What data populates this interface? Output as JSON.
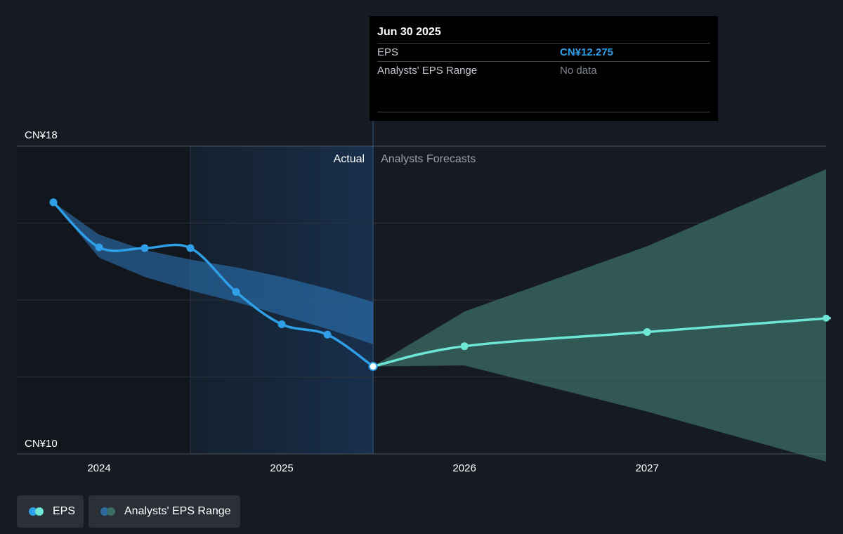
{
  "tooltip": {
    "date": "Jun 30 2025",
    "rows": [
      {
        "label": "EPS",
        "value": "CN¥12.275"
      },
      {
        "label": "Analysts' EPS Range",
        "value": "No data"
      }
    ]
  },
  "legend": {
    "eps_label": "EPS",
    "range_label": "Analysts' EPS Range"
  },
  "colors": {
    "background": "#161b23",
    "actual_line": "#2f9fe8",
    "forecast_line": "#6ee6d6",
    "actual_range": "#2d7cc0",
    "forecast_range": "#3b6e66"
  },
  "chart_data": {
    "type": "line",
    "ylim": [
      10,
      18
    ],
    "y_ticks": [
      10,
      12,
      14,
      16,
      18
    ],
    "y_tick_labels": [
      "CN¥10",
      "CN¥18"
    ],
    "x_ticks": [
      {
        "x": 2024,
        "label": "2024"
      },
      {
        "x": 2025,
        "label": "2025"
      },
      {
        "x": 2026,
        "label": "2026"
      },
      {
        "x": 2027,
        "label": "2027"
      }
    ],
    "xlim": [
      2023.55,
      2027.98
    ],
    "region_labels": {
      "actual": "Actual",
      "forecast": "Analysts Forecasts"
    },
    "divider_x": 2025.5,
    "past_shade_start": 2024.5,
    "series": [
      {
        "name": "EPS",
        "kind": "actual",
        "points": [
          {
            "x": 2023.75,
            "y": 16.54
          },
          {
            "x": 2024.0,
            "y": 15.37
          },
          {
            "x": 2024.25,
            "y": 15.35
          },
          {
            "x": 2024.5,
            "y": 15.35
          },
          {
            "x": 2024.75,
            "y": 14.21
          },
          {
            "x": 2025.0,
            "y": 13.37
          },
          {
            "x": 2025.25,
            "y": 13.1
          },
          {
            "x": 2025.5,
            "y": 12.275
          }
        ]
      },
      {
        "name": "EPS",
        "kind": "forecast",
        "points": [
          {
            "x": 2025.5,
            "y": 12.275
          },
          {
            "x": 2026.0,
            "y": 12.8
          },
          {
            "x": 2027.0,
            "y": 13.17
          },
          {
            "x": 2028.0,
            "y": 13.53
          }
        ]
      }
    ],
    "actual_range": {
      "x": [
        2023.75,
        2024.0,
        2024.25,
        2024.5,
        2024.75,
        2025.0,
        2025.25,
        2025.5
      ],
      "high": [
        16.54,
        15.7,
        15.3,
        15.05,
        14.85,
        14.6,
        14.3,
        13.95
      ],
      "low": [
        16.54,
        15.1,
        14.6,
        14.25,
        13.95,
        13.6,
        13.25,
        12.85
      ]
    },
    "forecast_range": {
      "x": [
        2025.5,
        2026.0,
        2027.0,
        2027.98
      ],
      "high": [
        12.275,
        13.7,
        15.4,
        17.4
      ],
      "low": [
        12.275,
        12.3,
        11.1,
        9.8
      ]
    }
  }
}
